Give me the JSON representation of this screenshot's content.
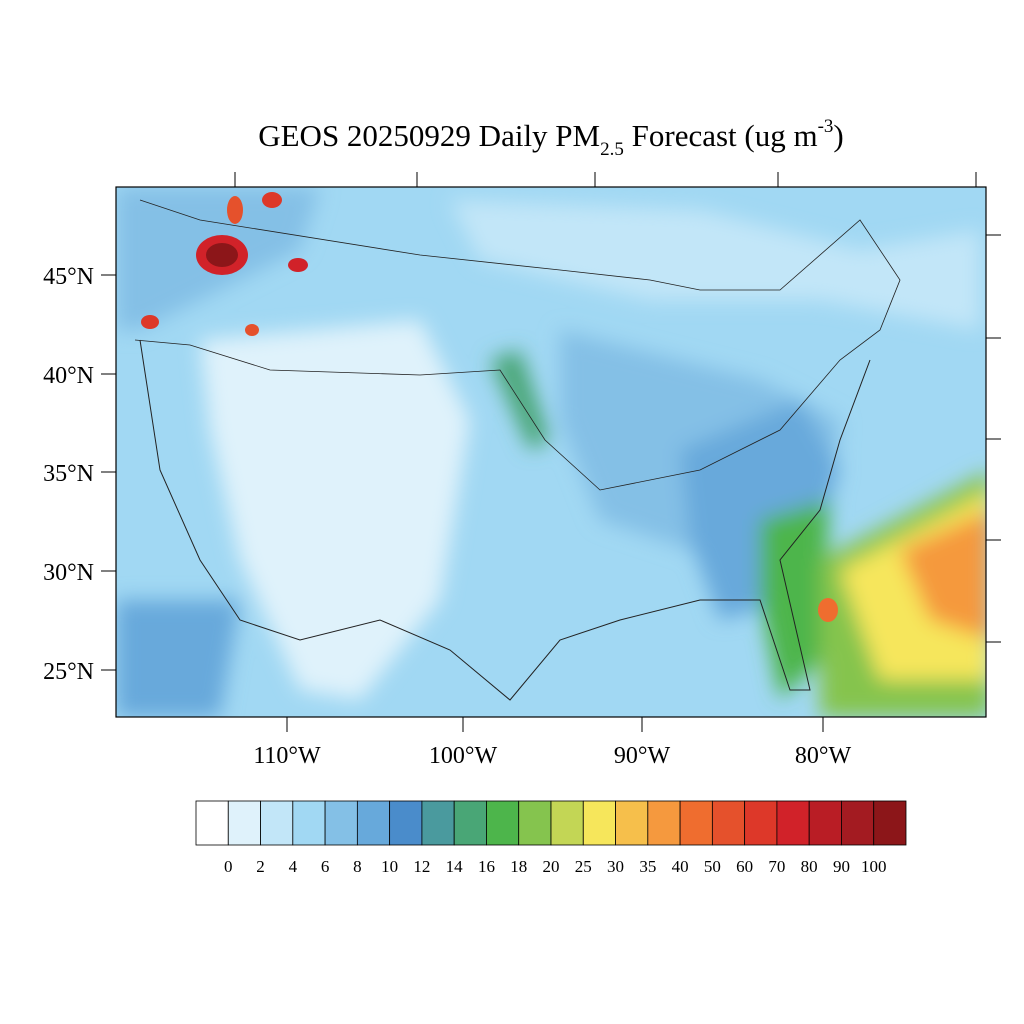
{
  "title": {
    "prefix": "GEOS 20250929 Daily PM",
    "subscript": "2.5",
    "middle": " Forecast (ug m",
    "superscript": "-3",
    "suffix": ")"
  },
  "map": {
    "lat_labels": [
      "45°N",
      "40°N",
      "35°N",
      "30°N",
      "25°N"
    ],
    "lon_labels": [
      "110°W",
      "100°W",
      "90°W",
      "80°W"
    ]
  },
  "colorbar": {
    "colors": [
      "#ffffff",
      "#dff2fb",
      "#c2e6f8",
      "#a1d8f3",
      "#84c0e6",
      "#67a9db",
      "#4a8ccb",
      "#4a9a9e",
      "#49a676",
      "#4db54b",
      "#85c44e",
      "#c3d655",
      "#f6e65b",
      "#f6bf4b",
      "#f5993e",
      "#ef6d2f",
      "#e5512c",
      "#dd3829",
      "#d12229",
      "#b91d25",
      "#a31b21",
      "#8c1619"
    ],
    "levels": [
      0,
      2,
      4,
      6,
      8,
      10,
      12,
      14,
      16,
      18,
      20,
      25,
      30,
      35,
      40,
      50,
      60,
      70,
      80,
      90,
      100
    ]
  }
}
